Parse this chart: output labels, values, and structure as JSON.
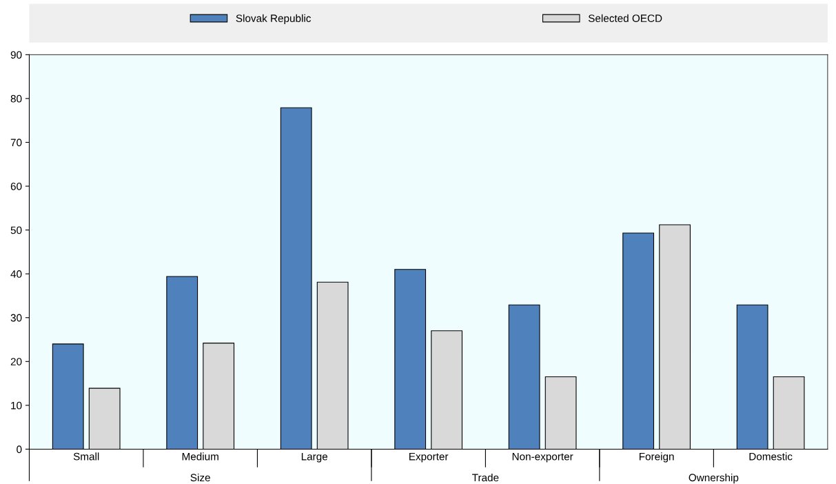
{
  "chart_data": {
    "type": "bar",
    "categories": [
      "Small",
      "Medium",
      "Large",
      "Exporter",
      "Non-exporter",
      "Foreign",
      "Domestic"
    ],
    "series": [
      {
        "name": "Slovak Republic",
        "color": "#4f81bd",
        "values": [
          24,
          39.4,
          77.9,
          41,
          32.9,
          49.3,
          32.9
        ]
      },
      {
        "name": "Selected OECD",
        "color": "#d9d9d9",
        "values": [
          13.9,
          24.2,
          38.1,
          27,
          16.5,
          51.2,
          16.5
        ]
      }
    ],
    "annotations": [
      "Size",
      "Trade",
      "Ownership"
    ],
    "ylim": [
      0,
      90
    ],
    "yticks": [
      0,
      10,
      20,
      30,
      40,
      50,
      60,
      70,
      80,
      90
    ],
    "grid": false,
    "legend": "top"
  }
}
